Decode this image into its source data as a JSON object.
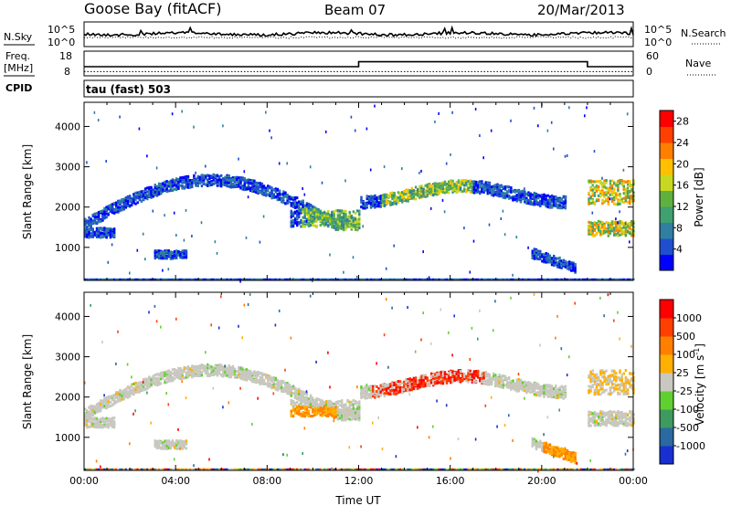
{
  "header": {
    "station": "Goose Bay (fitACF)",
    "beam": "Beam 07",
    "date": "20/Mar/2013"
  },
  "noise_panel": {
    "left_label": "N.Sky",
    "right_label": "N.Search",
    "left_ticks": [
      "10^5",
      "10^0"
    ],
    "right_ticks": [
      "10^5",
      "10^0"
    ]
  },
  "freq_panel": {
    "left_label_1": "Freq.",
    "left_label_2": "[MHz]",
    "right_label": "Nave",
    "left_ticks": [
      "18",
      "8"
    ],
    "right_ticks": [
      "60",
      "0"
    ],
    "freq_value": 10,
    "nave_steps": [
      {
        "from": 0,
        "to": 12,
        "value": 30
      },
      {
        "from": 12,
        "to": 22,
        "value": 48
      },
      {
        "from": 22,
        "to": 24,
        "value": 30
      }
    ]
  },
  "cpid": {
    "label": "CPID",
    "text": "tau (fast) 503"
  },
  "chart_data": [
    {
      "type": "heatmap",
      "name": "power",
      "ylabel": "Slant Range [km]",
      "xlabel": "",
      "x_ticks": [
        "00:00",
        "04:00",
        "08:00",
        "12:00",
        "16:00",
        "20:00",
        "00:00"
      ],
      "y_ticks": [
        "1000",
        "2000",
        "3000",
        "4000"
      ],
      "xlim": [
        0,
        24
      ],
      "ylim": [
        180,
        4600
      ],
      "colorbar": {
        "label": "Power [dB]",
        "ticks": [
          "4",
          "8",
          "12",
          "16",
          "20",
          "24",
          "28"
        ],
        "range": [
          0,
          30
        ],
        "colors": [
          "#0000ff",
          "#1f4fcf",
          "#2f80a0",
          "#3fa070",
          "#60b040",
          "#c8d820",
          "#ffc000",
          "#ff8000",
          "#ff4000",
          "#ff0000"
        ]
      }
    },
    {
      "type": "heatmap",
      "name": "velocity",
      "ylabel": "Slant Range [km]",
      "xlabel": "Time UT",
      "x_ticks": [
        "00:00",
        "04:00",
        "08:00",
        "12:00",
        "16:00",
        "20:00",
        "00:00"
      ],
      "y_ticks": [
        "1000",
        "2000",
        "3000",
        "4000"
      ],
      "xlim": [
        0,
        24
      ],
      "ylim": [
        180,
        4600
      ],
      "colorbar": {
        "label": "Velocity [m s",
        "label_sup": "-1",
        "label_end": "]",
        "ticks": [
          "1000",
          "500",
          "100",
          "25",
          "-25",
          "-100",
          "-500",
          "-1000"
        ],
        "colors": [
          "#1a2fd0",
          "#2a6aa0",
          "#3f9a60",
          "#60d030",
          "#c8c8c0",
          "#ffb000",
          "#ff8000",
          "#ff4000",
          "#ff0000"
        ]
      }
    }
  ]
}
